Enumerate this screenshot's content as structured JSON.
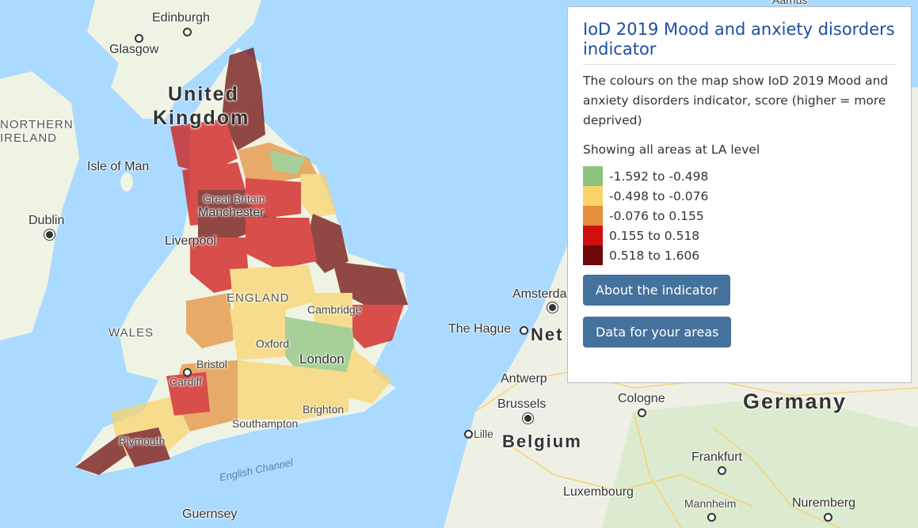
{
  "panel": {
    "title": "IoD 2019 Mood and anxiety disorders indicator",
    "description": "The colours on the map show IoD 2019 Mood and anxiety disorders indicator, score (higher = more deprived)",
    "showing": "Showing all areas at LA level",
    "legend": [
      {
        "label": "-1.592 to -0.498",
        "color": "#8dc37b"
      },
      {
        "label": "-0.498 to -0.076",
        "color": "#fad46b"
      },
      {
        "label": "-0.076 to 0.155",
        "color": "#e58f3a"
      },
      {
        "label": "0.155 to 0.518",
        "color": "#d0100f"
      },
      {
        "label": "0.518 to 1.606",
        "color": "#6e0707"
      }
    ],
    "about_button": "About the indicator",
    "data_button": "Data for your areas"
  },
  "map": {
    "labels": {
      "edinburgh": "Edinburgh",
      "glasgow": "Glasgow",
      "united": "United",
      "kingdom": "Kingdom",
      "northern": "NORTHERN",
      "ireland": "IRELAND",
      "isle_of_man": "Isle of Man",
      "dublin": "Dublin",
      "great_britain": "Great Britain",
      "manchester": "Manchester",
      "liverpool": "Liverpool",
      "england": "ENGLAND",
      "cambridge": "Cambridge",
      "wales": "WALES",
      "oxford": "Oxford",
      "london": "London",
      "bristol": "Bristol",
      "cardiff": "Cardiff",
      "brighton": "Brighton",
      "southampton": "Southampton",
      "plymouth": "Plymouth",
      "english_channel": "English Channel",
      "guernsey": "Guernsey",
      "amsterdam": "Amsterdam",
      "the_hague": "The Hague",
      "netherlands": "Net",
      "antwerp": "Antwerp",
      "brussels": "Brussels",
      "lille": "Lille",
      "belgium": "Belgium",
      "cologne": "Cologne",
      "germany": "Germany",
      "frankfurt": "Frankfurt",
      "luxembourg": "Luxembourg",
      "mannheim": "Mannheim",
      "nuremberg": "Nuremberg",
      "aarhus": "Aarhus"
    },
    "colors": {
      "sea": "#aadaff",
      "land": "#f5f3ee",
      "green_land": "#d7ebc7"
    }
  }
}
